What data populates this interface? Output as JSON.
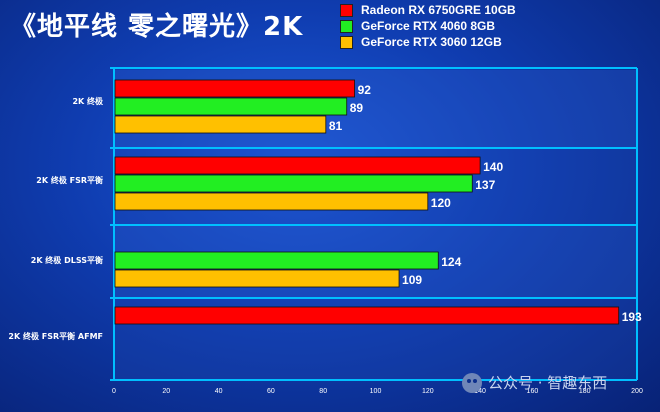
{
  "title": "《地平线 零之曙光》2K",
  "watermark": "公众号 · 智趣东西",
  "colors": {
    "background": "#0f3caf",
    "axis": "#00bfff",
    "grid": "#00bfff",
    "band": "#1f4db8"
  },
  "chart_data": {
    "type": "bar",
    "orientation": "horizontal",
    "title": "《地平线 零之曙光》2K",
    "categories": [
      "2K 终极",
      "2K 终极 FSR平衡",
      "2K 终极 DLSS平衡",
      "2K 终极 FSR平衡 AFMF"
    ],
    "series": [
      {
        "name": "Radeon RX 6750GRE 10GB",
        "color": "#ff0000",
        "values": [
          92,
          140,
          null,
          193
        ]
      },
      {
        "name": "GeForce RTX 4060 8GB",
        "color": "#22ee22",
        "values": [
          89,
          137,
          124,
          null
        ]
      },
      {
        "name": "GeForce RTX 3060 12GB",
        "color": "#ffc000",
        "values": [
          81,
          120,
          109,
          null
        ]
      }
    ],
    "x_ticks": [
      0,
      20,
      40,
      60,
      80,
      100,
      120,
      140,
      160,
      180,
      200
    ],
    "xlim": [
      0,
      200
    ],
    "grid": true,
    "legend_position": "top-right"
  }
}
